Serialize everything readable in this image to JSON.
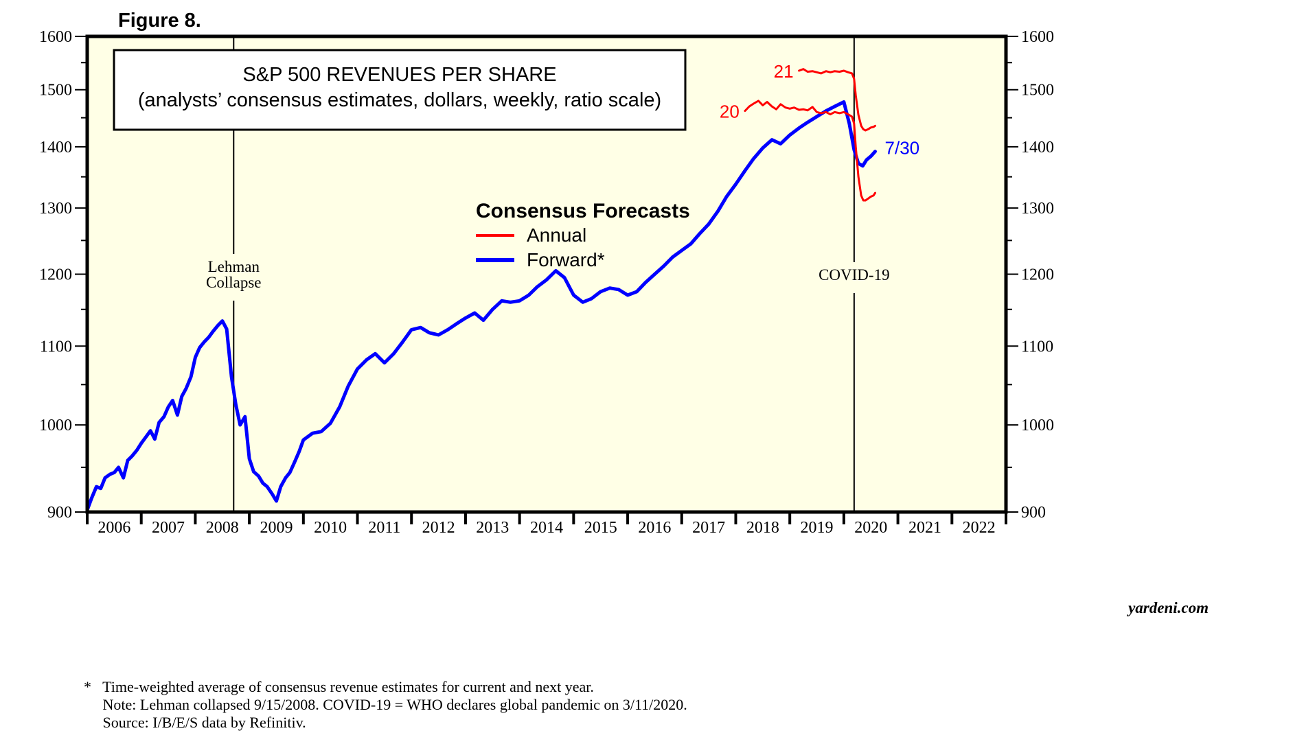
{
  "figure_label": "Figure 8.",
  "footnotes": [
    "*   Time-weighted average of consensus revenue estimates for current and next year.",
    "     Note: Lehman collapsed 9/15/2008. COVID-19 = WHO declares global pandemic on 3/11/2020.",
    "     Source: I/B/E/S data by Refinitiv."
  ],
  "watermark": "yardeni.com",
  "chart_data": {
    "type": "line",
    "title": "S&P 500 REVENUES PER SHARE",
    "subtitle": "(analysts’ consensus  estimates, dollars, weekly, ratio scale)",
    "xlabel": "",
    "ylabel": "",
    "yscale": "log",
    "ylim": [
      900,
      1600
    ],
    "xlim": [
      2006.0,
      2023.0
    ],
    "yticks": [
      900,
      1000,
      1100,
      1200,
      1300,
      1400,
      1500,
      1600
    ],
    "ytick_labels": [
      "900",
      "1000",
      "1100",
      "1200",
      "1300",
      "1400",
      "1500",
      "1600"
    ],
    "yminor_ticks": [
      950,
      1050,
      1150,
      1250,
      1350,
      1450,
      1550
    ],
    "xtick_labels": [
      "2006",
      "2007",
      "2008",
      "2009",
      "2010",
      "2011",
      "2012",
      "2013",
      "2014",
      "2015",
      "2016",
      "2017",
      "2018",
      "2019",
      "2020",
      "2021",
      "2022"
    ],
    "grid": false,
    "legend": {
      "title": "Consensus Forecasts",
      "placement": "upper-center",
      "entries": [
        {
          "label": "Annual",
          "color": "#ff0000"
        },
        {
          "label": "Forward*",
          "color": "#0000ff"
        }
      ]
    },
    "annotations": [
      {
        "text_lines": [
          "Lehman",
          "Collapse"
        ],
        "x": 2008.71,
        "type": "vline"
      },
      {
        "text_lines": [
          "COVID-19"
        ],
        "x": 2020.19,
        "type": "vline"
      },
      {
        "text": "7/30",
        "series": "Forward*",
        "color": "#0000ff"
      },
      {
        "text": "20",
        "series": "Annual 2020",
        "color": "#ff0000"
      },
      {
        "text": "21",
        "series": "Annual 2021",
        "color": "#ff0000"
      }
    ],
    "series": [
      {
        "name": "Forward*",
        "color": "#0000ff",
        "x": [
          2006.0,
          2006.08,
          2006.17,
          2006.25,
          2006.33,
          2006.42,
          2006.5,
          2006.58,
          2006.67,
          2006.75,
          2006.83,
          2006.92,
          2007.0,
          2007.08,
          2007.17,
          2007.25,
          2007.33,
          2007.42,
          2007.5,
          2007.58,
          2007.67,
          2007.75,
          2007.83,
          2007.92,
          2008.0,
          2008.08,
          2008.17,
          2008.25,
          2008.33,
          2008.42,
          2008.5,
          2008.58,
          2008.67,
          2008.75,
          2008.83,
          2008.92,
          2009.0,
          2009.08,
          2009.17,
          2009.25,
          2009.33,
          2009.42,
          2009.5,
          2009.58,
          2009.67,
          2009.75,
          2009.83,
          2009.92,
          2010.0,
          2010.17,
          2010.33,
          2010.5,
          2010.67,
          2010.83,
          2011.0,
          2011.17,
          2011.33,
          2011.5,
          2011.67,
          2011.83,
          2012.0,
          2012.17,
          2012.33,
          2012.5,
          2012.67,
          2012.83,
          2013.0,
          2013.17,
          2013.33,
          2013.5,
          2013.67,
          2013.83,
          2014.0,
          2014.17,
          2014.33,
          2014.5,
          2014.67,
          2014.83,
          2015.0,
          2015.17,
          2015.33,
          2015.5,
          2015.67,
          2015.83,
          2016.0,
          2016.17,
          2016.33,
          2016.5,
          2016.67,
          2016.83,
          2017.0,
          2017.17,
          2017.33,
          2017.5,
          2017.67,
          2017.83,
          2018.0,
          2018.17,
          2018.33,
          2018.5,
          2018.67,
          2018.83,
          2019.0,
          2019.17,
          2019.33,
          2019.5,
          2019.67,
          2019.83,
          2020.0,
          2020.1,
          2020.19,
          2020.27,
          2020.35,
          2020.42,
          2020.5,
          2020.58
        ],
        "values": [
          902,
          915,
          928,
          926,
          938,
          942,
          944,
          950,
          938,
          958,
          963,
          970,
          978,
          985,
          993,
          983,
          1003,
          1010,
          1022,
          1030,
          1012,
          1035,
          1045,
          1060,
          1085,
          1098,
          1106,
          1112,
          1120,
          1128,
          1134,
          1123,
          1060,
          1025,
          1000,
          1010,
          960,
          945,
          940,
          932,
          928,
          920,
          912,
          928,
          938,
          944,
          955,
          968,
          982,
          990,
          992,
          1002,
          1022,
          1048,
          1070,
          1082,
          1090,
          1078,
          1090,
          1105,
          1122,
          1125,
          1118,
          1115,
          1122,
          1130,
          1138,
          1145,
          1135,
          1150,
          1162,
          1160,
          1162,
          1170,
          1182,
          1192,
          1205,
          1195,
          1170,
          1160,
          1165,
          1175,
          1180,
          1178,
          1170,
          1175,
          1188,
          1200,
          1212,
          1225,
          1235,
          1245,
          1260,
          1275,
          1295,
          1318,
          1338,
          1360,
          1380,
          1398,
          1412,
          1405,
          1420,
          1432,
          1442,
          1452,
          1462,
          1470,
          1478,
          1440,
          1395,
          1372,
          1368,
          1378,
          1384,
          1392
        ]
      },
      {
        "name": "Annual 2020",
        "color": "#ff0000",
        "label": "20",
        "x": [
          2018.17,
          2018.25,
          2018.33,
          2018.42,
          2018.5,
          2018.58,
          2018.67,
          2018.75,
          2018.83,
          2018.92,
          2019.0,
          2019.08,
          2019.17,
          2019.25,
          2019.33,
          2019.42,
          2019.5,
          2019.58,
          2019.67,
          2019.75,
          2019.83,
          2019.92,
          2020.0,
          2020.08,
          2020.15,
          2020.19,
          2020.22,
          2020.27,
          2020.32,
          2020.36,
          2020.4,
          2020.45,
          2020.5,
          2020.55,
          2020.58
        ],
        "values": [
          1462,
          1470,
          1475,
          1480,
          1472,
          1478,
          1470,
          1465,
          1474,
          1468,
          1466,
          1468,
          1464,
          1465,
          1463,
          1469,
          1460,
          1458,
          1460,
          1456,
          1460,
          1458,
          1460,
          1456,
          1452,
          1440,
          1400,
          1350,
          1320,
          1312,
          1312,
          1315,
          1318,
          1320,
          1324
        ]
      },
      {
        "name": "Annual 2021",
        "color": "#ff0000",
        "label": "21",
        "x": [
          2019.17,
          2019.25,
          2019.33,
          2019.42,
          2019.5,
          2019.58,
          2019.67,
          2019.75,
          2019.83,
          2019.92,
          2020.0,
          2020.08,
          2020.15,
          2020.19,
          2020.22,
          2020.27,
          2020.32,
          2020.36,
          2020.4,
          2020.45,
          2020.5,
          2020.55,
          2020.58
        ],
        "values": [
          1535,
          1538,
          1533,
          1534,
          1532,
          1530,
          1534,
          1532,
          1534,
          1533,
          1535,
          1532,
          1530,
          1520,
          1490,
          1455,
          1436,
          1430,
          1428,
          1430,
          1433,
          1434,
          1436
        ]
      }
    ]
  }
}
